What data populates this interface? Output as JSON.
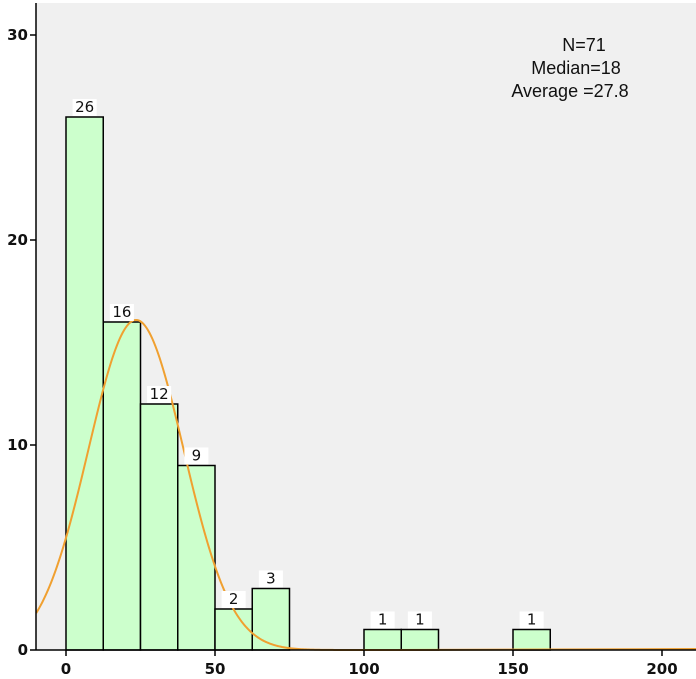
{
  "chart_data": {
    "type": "bar",
    "subtype": "histogram",
    "bin_width": 12.5,
    "bins": [
      {
        "x_start": 0,
        "x_end": 12.5,
        "count": 26
      },
      {
        "x_start": 12.5,
        "x_end": 25,
        "count": 16
      },
      {
        "x_start": 25,
        "x_end": 37.5,
        "count": 12
      },
      {
        "x_start": 37.5,
        "x_end": 50,
        "count": 9
      },
      {
        "x_start": 50,
        "x_end": 62.5,
        "count": 2
      },
      {
        "x_start": 62.5,
        "x_end": 75,
        "count": 3
      },
      {
        "x_start": 100,
        "x_end": 112.5,
        "count": 1
      },
      {
        "x_start": 112.5,
        "x_end": 125,
        "count": 1
      },
      {
        "x_start": 150,
        "x_end": 162.5,
        "count": 1
      }
    ],
    "data_labels": [
      "26",
      "16",
      "12",
      "9",
      "2",
      "3",
      "1",
      "1",
      "1"
    ],
    "normal_curve": {
      "mean": 23.5,
      "sd": 16.0,
      "peak": 16.1
    },
    "stats": {
      "n": "N=71",
      "median": "Median=18",
      "average": "Average =27.8"
    },
    "x_ticks": [
      "0",
      "50",
      "100",
      "150",
      "200"
    ],
    "y_ticks": [
      "0",
      "10",
      "20",
      "30"
    ],
    "xlim": [
      -10,
      210
    ],
    "ylim": [
      0,
      31.5
    ],
    "title": "",
    "xlabel": "",
    "ylabel": "",
    "grid": false,
    "colors": {
      "plot_background": "#f0f0f0",
      "bar_fill": "#ccffcc",
      "bar_stroke": "#000000",
      "curve": "#f0a030",
      "axis": "#000000"
    }
  }
}
